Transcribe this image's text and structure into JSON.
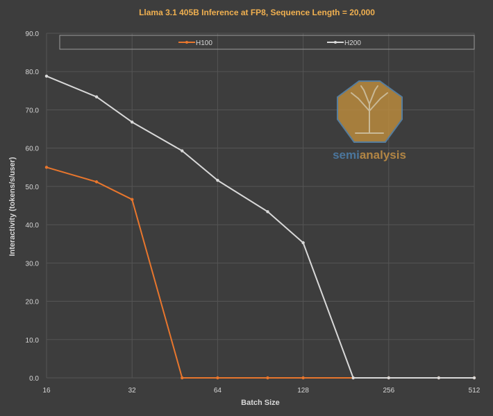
{
  "chart_data": {
    "type": "line",
    "title": "Llama 3.1 405B Inference at FP8, Sequence Length = 20,000",
    "xlabel": "Batch Size",
    "ylabel": "Interactivity (tokens/s/user)",
    "x_scale": "log2",
    "x": [
      16,
      24,
      32,
      48,
      64,
      96,
      128,
      192,
      256,
      384,
      512
    ],
    "x_ticks": [
      16,
      32,
      64,
      128,
      256,
      512
    ],
    "x_tick_labels": [
      "16",
      "32",
      "64",
      "128",
      "256",
      "512"
    ],
    "xlim": [
      16,
      512
    ],
    "ylim": [
      0,
      90
    ],
    "y_ticks": [
      0,
      10,
      20,
      30,
      40,
      50,
      60,
      70,
      80,
      90
    ],
    "y_tick_labels": [
      "0.0",
      "10.0",
      "20.0",
      "30.0",
      "40.0",
      "50.0",
      "60.0",
      "70.0",
      "80.0",
      "90.0"
    ],
    "grid": true,
    "legend_position": "top",
    "series": [
      {
        "name": "H100",
        "color": "#e8762d",
        "values": [
          55.0,
          51.2,
          46.6,
          0,
          0,
          0,
          0,
          0,
          0,
          0,
          0
        ]
      },
      {
        "name": "H200",
        "color": "#d9d9d9",
        "values": [
          78.8,
          73.4,
          66.8,
          59.3,
          51.6,
          43.4,
          35.3,
          0,
          0,
          0,
          0
        ]
      }
    ],
    "watermark": {
      "text_part1": "semi",
      "text_part2": "analysis"
    }
  },
  "colors": {
    "background": "#3d3d3d",
    "title": "#f0b050",
    "axis_text": "#d8d8d8",
    "grid": "#555555",
    "legend_border": "#9a9a9a"
  }
}
